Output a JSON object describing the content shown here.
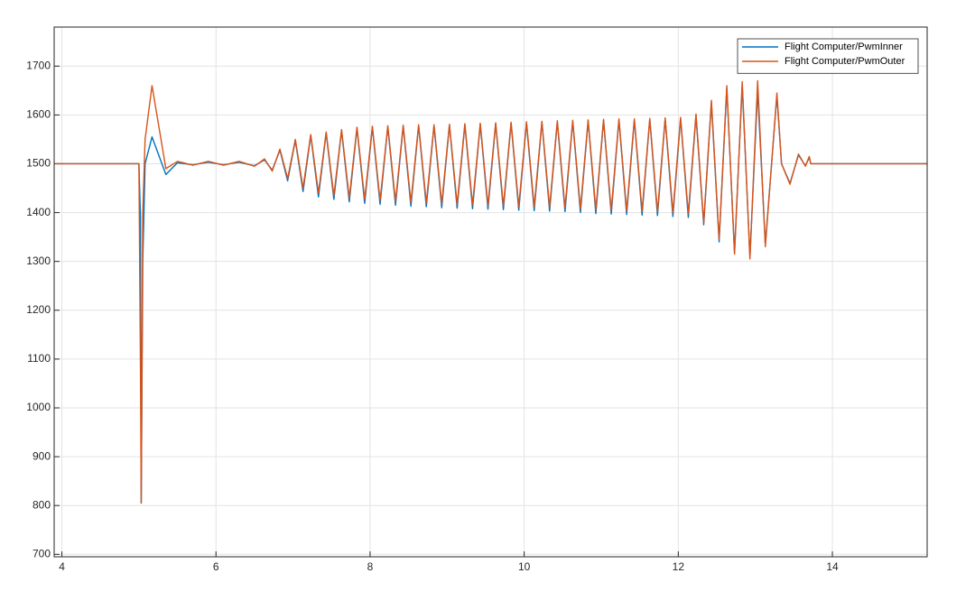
{
  "chart_data": {
    "type": "line",
    "x": [
      3.9,
      5.0,
      5.02,
      5.03,
      5.05,
      5.08,
      5.17,
      5.35,
      5.5,
      5.7,
      5.9,
      6.1,
      6.3,
      6.5,
      6.63,
      6.73,
      6.83,
      6.93,
      7.03,
      7.13,
      7.23,
      7.33,
      7.43,
      7.53,
      7.63,
      7.73,
      7.83,
      7.93,
      8.03,
      8.13,
      8.23,
      8.33,
      8.43,
      8.53,
      8.63,
      8.73,
      8.83,
      8.93,
      9.03,
      9.13,
      9.23,
      9.33,
      9.43,
      9.53,
      9.63,
      9.73,
      9.83,
      9.93,
      10.03,
      10.13,
      10.23,
      10.33,
      10.43,
      10.53,
      10.63,
      10.73,
      10.83,
      10.93,
      11.03,
      11.13,
      11.23,
      11.33,
      11.43,
      11.53,
      11.63,
      11.73,
      11.83,
      11.93,
      12.03,
      12.13,
      12.23,
      12.33,
      12.43,
      12.53,
      12.63,
      12.73,
      12.83,
      12.93,
      13.03,
      13.13,
      13.28,
      13.34,
      13.45,
      13.56,
      13.65,
      13.7,
      13.72,
      15.23
    ],
    "series": [
      {
        "name": "Flight Computer/PwmInner",
        "color": "#0072BD",
        "values": [
          1500,
          1500,
          1390,
          805,
          1300,
          1500,
          1555,
          1478,
          1502,
          1498,
          1503,
          1498,
          1503,
          1496,
          1508,
          1487,
          1528,
          1465,
          1548,
          1443,
          1558,
          1432,
          1563,
          1427,
          1568,
          1422,
          1573,
          1419,
          1575,
          1417,
          1576,
          1415,
          1577,
          1413,
          1578,
          1412,
          1578,
          1410,
          1579,
          1409,
          1580,
          1408,
          1581,
          1407,
          1582,
          1406,
          1583,
          1405,
          1584,
          1404,
          1585,
          1403,
          1586,
          1402,
          1587,
          1400,
          1588,
          1398,
          1589,
          1397,
          1590,
          1396,
          1590,
          1395,
          1591,
          1394,
          1592,
          1392,
          1593,
          1390,
          1598,
          1375,
          1625,
          1340,
          1655,
          1318,
          1660,
          1310,
          1650,
          1335,
          1640,
          1500,
          1460,
          1518,
          1496,
          1513,
          1500,
          1500
        ]
      },
      {
        "name": "Flight Computer/PwmOuter",
        "color": "#D95319",
        "values": [
          1500,
          1500,
          1080,
          805,
          1400,
          1550,
          1660,
          1490,
          1505,
          1497,
          1505,
          1497,
          1505,
          1495,
          1510,
          1485,
          1530,
          1470,
          1550,
          1450,
          1560,
          1440,
          1565,
          1435,
          1570,
          1430,
          1575,
          1427,
          1577,
          1425,
          1578,
          1423,
          1579,
          1421,
          1580,
          1420,
          1580,
          1418,
          1581,
          1417,
          1582,
          1416,
          1583,
          1415,
          1584,
          1414,
          1585,
          1413,
          1586,
          1412,
          1587,
          1411,
          1588,
          1410,
          1589,
          1408,
          1590,
          1406,
          1591,
          1405,
          1592,
          1404,
          1592,
          1403,
          1593,
          1402,
          1594,
          1400,
          1595,
          1398,
          1602,
          1380,
          1630,
          1345,
          1660,
          1315,
          1668,
          1305,
          1670,
          1330,
          1645,
          1500,
          1458,
          1520,
          1495,
          1515,
          1500,
          1500
        ]
      }
    ],
    "xlim": [
      3.9,
      15.23
    ],
    "xticks": [
      4,
      6,
      8,
      10,
      12,
      14
    ],
    "ylim": [
      695,
      1780
    ],
    "yticks": [
      700,
      800,
      900,
      1000,
      1100,
      1200,
      1300,
      1400,
      1500,
      1600,
      1700
    ],
    "grid": true,
    "legend": "top-right"
  }
}
